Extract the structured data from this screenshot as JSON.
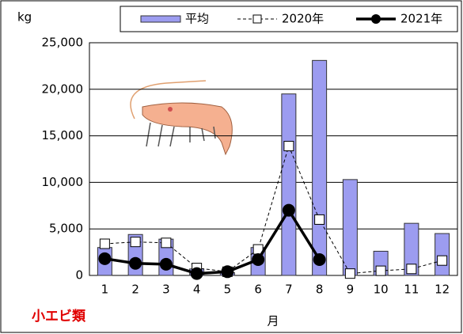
{
  "chart_data": {
    "type": "bar",
    "y_label": "kg",
    "x_label": "月",
    "annotation": "小エビ類",
    "categories": [
      "1",
      "2",
      "3",
      "4",
      "5",
      "6",
      "7",
      "8",
      "9",
      "10",
      "11",
      "12"
    ],
    "series": [
      {
        "name": "平均",
        "style": "bar",
        "color": "#9c9cf0",
        "values": [
          3000,
          4400,
          3900,
          700,
          300,
          3000,
          19500,
          23100,
          10300,
          2600,
          5600,
          4500
        ]
      },
      {
        "name": "2020年",
        "style": "dashed",
        "color": "#000000",
        "values": [
          3400,
          3600,
          3500,
          800,
          400,
          2800,
          13900,
          6000,
          200,
          500,
          700,
          1600
        ]
      },
      {
        "name": "2021年",
        "style": "line",
        "color": "#000000",
        "values": [
          1800,
          1300,
          1200,
          200,
          400,
          1700,
          7000,
          1700,
          null,
          null,
          null,
          null
        ]
      }
    ],
    "ylim": [
      0,
      25000
    ],
    "yticks": [
      0,
      {
        "value": 5000,
        "label": "5,000"
      },
      {
        "value": 10000,
        "label": "10,000"
      },
      {
        "value": 15000,
        "label": "15,000"
      },
      {
        "value": 20000,
        "label": "20,000"
      },
      {
        "value": 25000,
        "label": "25,000"
      }
    ],
    "grid": true
  }
}
